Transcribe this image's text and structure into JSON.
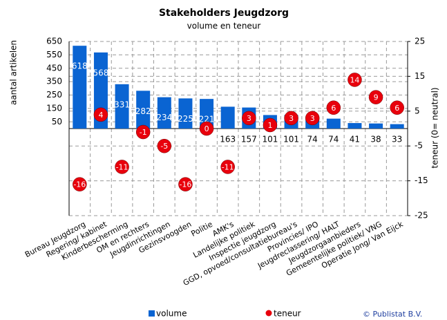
{
  "chart_data": {
    "type": "bar",
    "title": "Stakeholders Jeugdzorg",
    "subtitle": "volume en teneur",
    "ylabel": "aantal artikelen",
    "y2label": "teneur (0= neutral)",
    "copyright": "© Publistat B.V.",
    "categories": [
      "Bureau Jeugdzorg",
      "Regering/ kabinet",
      "Kinderbescherming",
      "OM en rechters",
      "Jeugdinrichtingen",
      "Gezinsvoogden",
      "Politie",
      "AMK's",
      "Landelijke politiek",
      "Inspectie jeugdzorg",
      "GGD, opvoed/consultatiebureau's",
      "Provincies/ IPO",
      "Jeugdreclassering/ HALT",
      "Jeugdzorgaanbieders",
      "Gemeentelijke politiek/ VNG",
      "Operatie Jong/ Van Eijck"
    ],
    "series": [
      {
        "name": "volume",
        "type": "bar",
        "color": "#0a64d2",
        "values": [
          618,
          568,
          331,
          282,
          234,
          225,
          221,
          163,
          157,
          101,
          101,
          74,
          74,
          41,
          38,
          33
        ]
      },
      {
        "name": "teneur",
        "type": "scatter",
        "axis": "y2",
        "color": "#e8000c",
        "values": [
          -16,
          4,
          -11,
          -1,
          -5,
          -16,
          0,
          -11,
          3,
          1,
          3,
          3,
          6,
          14,
          9,
          6
        ]
      }
    ],
    "ylim": [
      -650,
      650
    ],
    "yticks": [
      50,
      150,
      250,
      350,
      450,
      550,
      650
    ],
    "y2lim": [
      -25,
      25
    ],
    "y2ticks": [
      25,
      15,
      5,
      -5,
      -15,
      -25
    ],
    "grid": true
  }
}
